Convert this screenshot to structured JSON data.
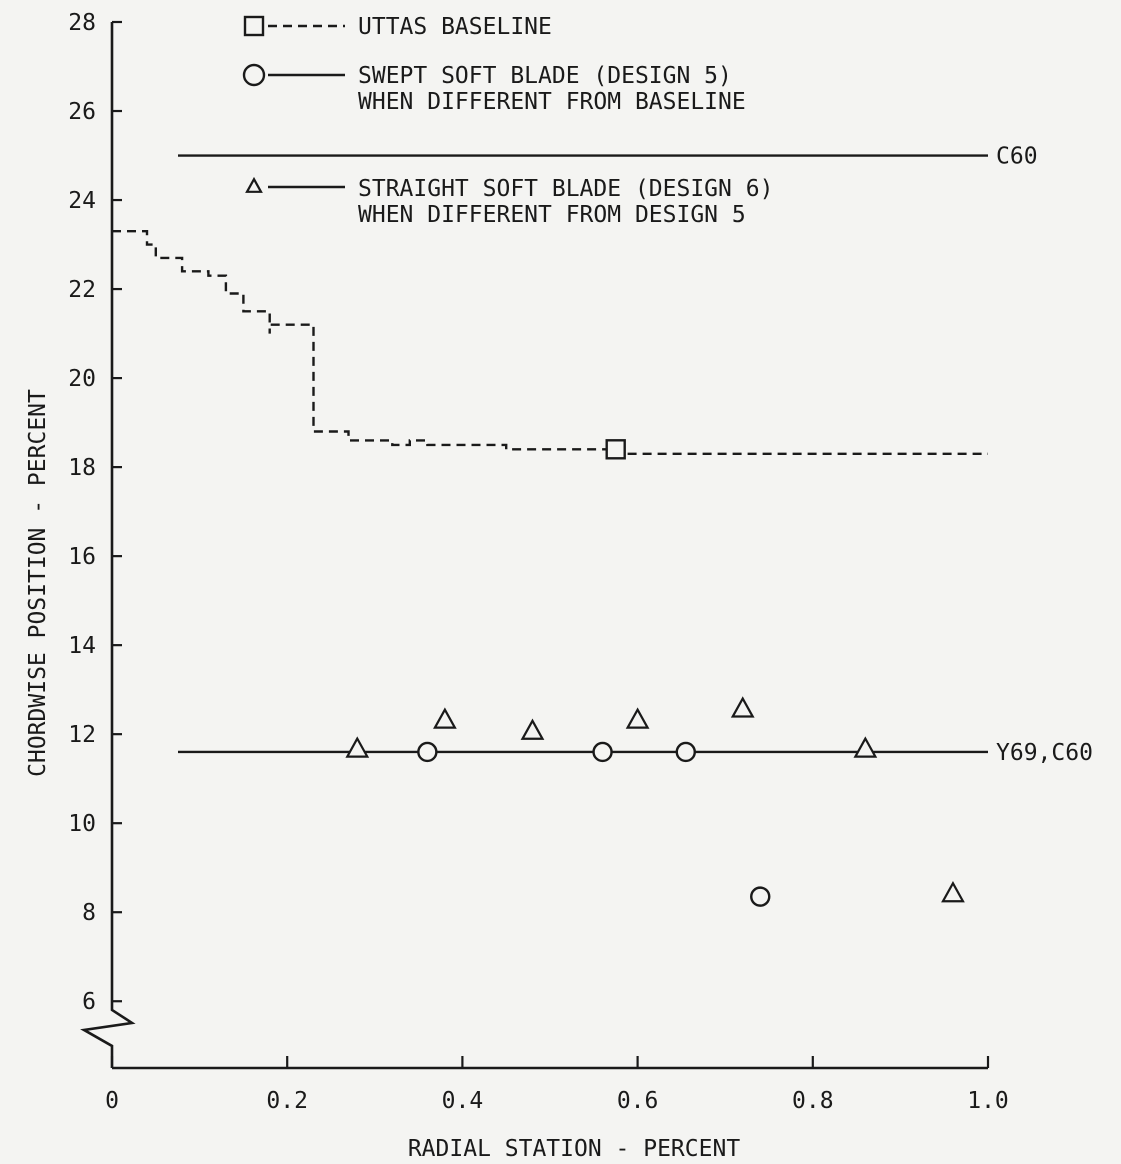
{
  "chart_data": {
    "type": "line",
    "xlabel": "RADIAL STATION - PERCENT",
    "ylabel": "CHORDWISE POSITION - PERCENT",
    "xlim": [
      0,
      1.0
    ],
    "ylim": [
      4.5,
      28
    ],
    "xticks": [
      {
        "value": 0,
        "label": "0"
      },
      {
        "value": 0.2,
        "label": "0.2"
      },
      {
        "value": 0.4,
        "label": "0.4"
      },
      {
        "value": 0.6,
        "label": "0.6"
      },
      {
        "value": 0.8,
        "label": "0.8"
      },
      {
        "value": 1.0,
        "label": "1.0"
      }
    ],
    "yticks": [
      {
        "value": 6,
        "label": "6"
      },
      {
        "value": 8,
        "label": "8"
      },
      {
        "value": 10,
        "label": "10"
      },
      {
        "value": 12,
        "label": "12"
      },
      {
        "value": 14,
        "label": "14"
      },
      {
        "value": 16,
        "label": "16"
      },
      {
        "value": 18,
        "label": "18"
      },
      {
        "value": 20,
        "label": "20"
      },
      {
        "value": 22,
        "label": "22"
      },
      {
        "value": 24,
        "label": "24"
      },
      {
        "value": 26,
        "label": "26"
      },
      {
        "value": 28,
        "label": "28"
      }
    ],
    "axis_break": {
      "axis": "y",
      "value": 5.4
    },
    "grid": false,
    "legend": [
      {
        "marker": "square",
        "line": "dashed",
        "label": "UTTAS BASELINE"
      },
      {
        "marker": "circle",
        "line": "solid",
        "label": [
          "SWEPT SOFT BLADE (DESIGN 5)",
          "WHEN DIFFERENT FROM BASELINE"
        ]
      },
      {
        "marker": "triangle",
        "line": "solid",
        "label": [
          "STRAIGHT SOFT BLADE (DESIGN 6)",
          "WHEN DIFFERENT FROM DESIGN 5"
        ]
      }
    ],
    "legend_placement": "top-left",
    "baseline_step": {
      "style": "dashed",
      "points": [
        [
          0.0,
          23.3
        ],
        [
          0.04,
          23.3
        ],
        [
          0.04,
          23.0
        ],
        [
          0.05,
          23.0
        ],
        [
          0.05,
          22.7
        ],
        [
          0.08,
          22.7
        ],
        [
          0.08,
          22.4
        ],
        [
          0.11,
          22.4
        ],
        [
          0.11,
          22.3
        ],
        [
          0.13,
          22.3
        ],
        [
          0.13,
          21.9
        ],
        [
          0.15,
          21.9
        ],
        [
          0.15,
          21.5
        ],
        [
          0.18,
          21.5
        ],
        [
          0.18,
          21.0
        ],
        [
          0.18,
          21.0
        ],
        [
          0.18,
          21.2
        ],
        [
          0.23,
          21.2
        ],
        [
          0.23,
          21.1
        ],
        [
          0.23,
          18.8
        ],
        [
          0.27,
          18.8
        ],
        [
          0.27,
          18.6
        ],
        [
          0.32,
          18.6
        ],
        [
          0.32,
          18.5
        ],
        [
          0.34,
          18.5
        ],
        [
          0.34,
          18.6
        ],
        [
          0.36,
          18.6
        ],
        [
          0.36,
          18.5
        ],
        [
          0.45,
          18.5
        ],
        [
          0.45,
          18.4
        ],
        [
          0.57,
          18.4
        ],
        [
          0.57,
          18.3
        ],
        [
          1.0,
          18.3
        ]
      ],
      "marker": {
        "shape": "square",
        "x": 0.575,
        "y": 18.4
      }
    },
    "lines": [
      {
        "label": "C60",
        "y": 25.0,
        "x_start": 0.0,
        "x_end": 1.0
      },
      {
        "label": "Y69,C60",
        "y": 11.6,
        "x_start": 0.0,
        "x_end": 1.0
      }
    ],
    "design5_points": [
      [
        0.36,
        11.6
      ],
      [
        0.56,
        11.6
      ],
      [
        0.655,
        11.6
      ],
      [
        0.74,
        8.35
      ]
    ],
    "design6_points": [
      [
        0.28,
        11.65
      ],
      [
        0.38,
        12.3
      ],
      [
        0.48,
        12.05
      ],
      [
        0.6,
        12.3
      ],
      [
        0.72,
        12.55
      ],
      [
        0.86,
        11.65
      ],
      [
        0.96,
        8.4
      ]
    ]
  }
}
